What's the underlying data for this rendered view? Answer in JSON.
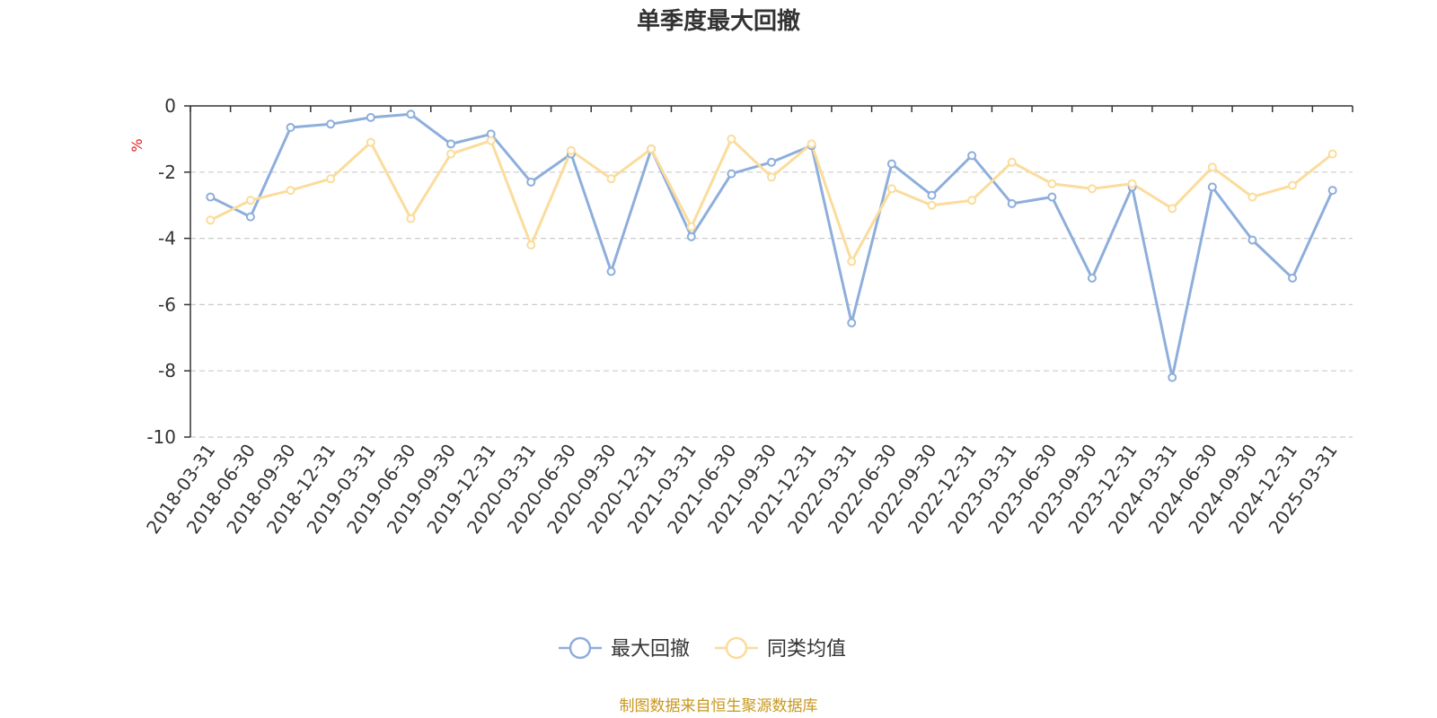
{
  "chart_data": {
    "type": "line",
    "title": "单季度最大回撤",
    "ylabel": "%",
    "ylim": [
      -10,
      0
    ],
    "yticks": [
      0,
      -2,
      -4,
      -6,
      -8,
      -10
    ],
    "grid": true,
    "legend_position": "bottom-center",
    "x": [
      "2018-03-31",
      "2018-06-30",
      "2018-09-30",
      "2018-12-31",
      "2019-03-31",
      "2019-06-30",
      "2019-09-30",
      "2019-12-31",
      "2020-03-31",
      "2020-06-30",
      "2020-09-30",
      "2020-12-31",
      "2021-03-31",
      "2021-06-30",
      "2021-09-30",
      "2021-12-31",
      "2022-03-31",
      "2022-06-30",
      "2022-09-30",
      "2022-12-31",
      "2023-03-31",
      "2023-06-30",
      "2023-09-30",
      "2023-12-31",
      "2024-03-31",
      "2024-06-30",
      "2024-09-30",
      "2024-12-31",
      "2025-03-31"
    ],
    "series": [
      {
        "name": "最大回撤",
        "color": "#8eaedb",
        "values": [
          -2.75,
          -3.35,
          -0.65,
          -0.55,
          -0.35,
          -0.25,
          -1.15,
          -0.85,
          -2.3,
          -1.45,
          -5.0,
          -1.3,
          -3.95,
          -2.05,
          -1.7,
          -1.2,
          -6.55,
          -1.75,
          -2.7,
          -1.5,
          -2.95,
          -2.75,
          -5.2,
          -2.45,
          -8.2,
          -2.45,
          -4.05,
          -5.2,
          -2.55
        ]
      },
      {
        "name": "同类均值",
        "color": "#fbdc9c",
        "values": [
          -3.45,
          -2.85,
          -2.55,
          -2.2,
          -1.1,
          -3.4,
          -1.45,
          -1.05,
          -4.2,
          -1.35,
          -2.2,
          -1.3,
          -3.65,
          -1.0,
          -2.15,
          -1.15,
          -4.7,
          -2.5,
          -3.0,
          -2.85,
          -1.7,
          -2.35,
          -2.5,
          -2.35,
          -3.1,
          -1.85,
          -2.75,
          -2.4,
          -1.45
        ]
      }
    ],
    "unit_color": "#e02020",
    "source": "制图数据来自恒生聚源数据库",
    "source_color": "#c8971e"
  }
}
